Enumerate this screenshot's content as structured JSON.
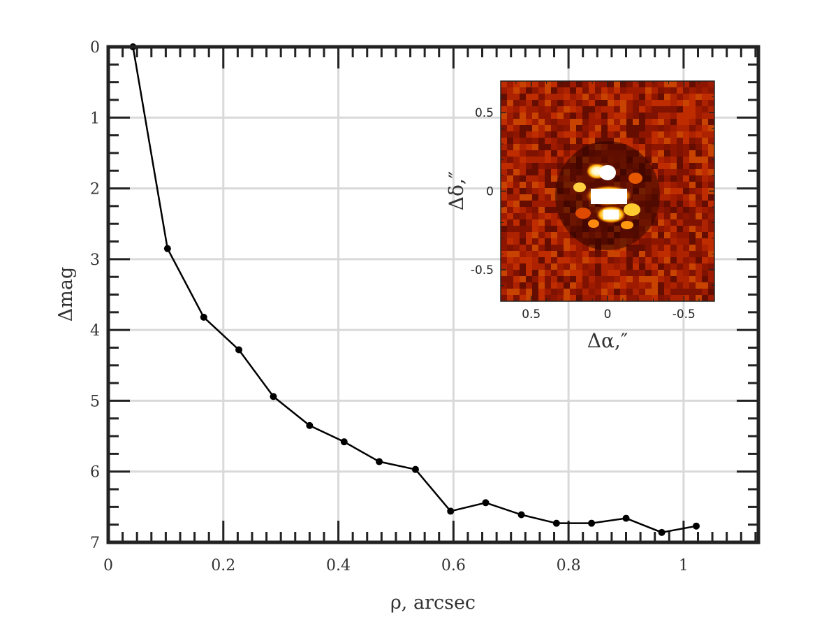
{
  "chart_data": {
    "type": "line",
    "title": "",
    "xlabel": "ρ, arcsec",
    "ylabel": "Δmag",
    "xlim": [
      0,
      1.13
    ],
    "ylim": [
      0,
      7
    ],
    "y_inverted": true,
    "grid": true,
    "x_ticks": [
      "0",
      "0.2",
      "0.4",
      "0.6",
      "0.8",
      "1"
    ],
    "y_ticks": [
      "0",
      "1",
      "2",
      "3",
      "4",
      "5",
      "6",
      "7"
    ],
    "series": [
      {
        "x": [
          0.043,
          0.103,
          0.166,
          0.227,
          0.287,
          0.35,
          0.41,
          0.471,
          0.534,
          0.595,
          0.656,
          0.718,
          0.779,
          0.84,
          0.9,
          0.962,
          1.022
        ],
        "y": [
          0.0,
          2.85,
          3.82,
          4.28,
          4.94,
          5.35,
          5.58,
          5.86,
          5.97,
          6.56,
          6.44,
          6.61,
          6.73,
          6.73,
          6.66,
          6.86,
          6.77
        ]
      }
    ],
    "inset": {
      "type": "heatmap",
      "xlabel": "Δα,″",
      "ylabel": "Δδ,″",
      "xlim": [
        0.7,
        -0.7
      ],
      "ylim": [
        -0.7,
        0.7
      ],
      "x_ticks": [
        "0.5",
        "0",
        "-0.5"
      ],
      "y_ticks": [
        "0.5",
        "0",
        "-0.5"
      ],
      "colormap": "hot"
    }
  }
}
